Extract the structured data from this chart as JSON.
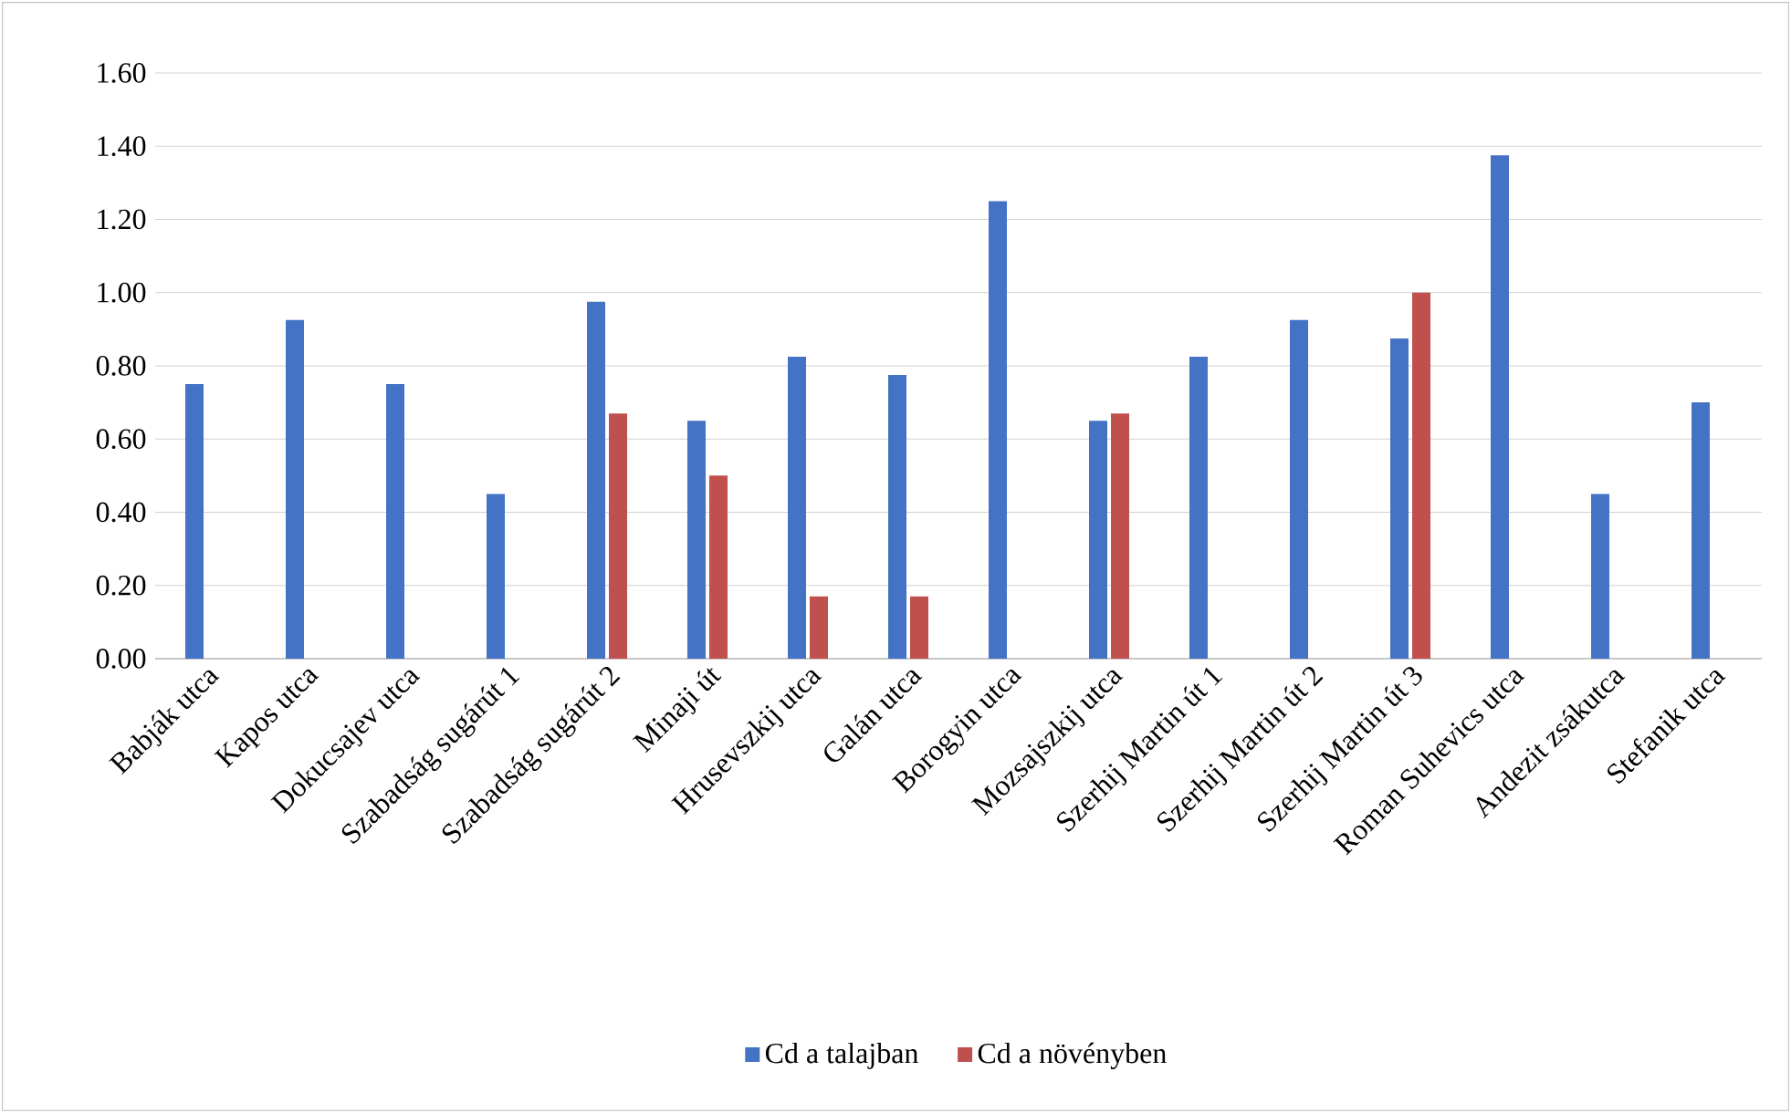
{
  "chart_data": {
    "type": "bar",
    "categories": [
      "Babják utca",
      "Kapos utca",
      "Dokucsajev utca",
      "Szabadság sugárút 1",
      "Szabadság sugárút 2",
      "Minaji út",
      "Hrusevszkij utca",
      "Galán utca",
      "Borogyin utca",
      "Mozsajszkij utca",
      "Szerhij Martin út 1",
      "Szerhij Martin út 2",
      "Szerhij Martin út 3",
      "Roman Suhevics utca",
      "Andezit zsákutca",
      "Stefanik utca"
    ],
    "series": [
      {
        "name": "Cd a talajban",
        "color": "#4472c4",
        "values": [
          0.75,
          0.925,
          0.75,
          0.45,
          0.975,
          0.65,
          0.825,
          0.775,
          1.25,
          0.65,
          0.825,
          0.925,
          0.875,
          1.375,
          0.45,
          0.7
        ]
      },
      {
        "name": "Cd a növényben",
        "color": "#c0504d",
        "values": [
          null,
          null,
          null,
          null,
          0.67,
          0.5,
          0.17,
          0.17,
          null,
          0.67,
          null,
          null,
          1.0,
          null,
          null,
          null
        ]
      }
    ],
    "ylim": [
      0,
      1.6
    ],
    "yticks": [
      {
        "value": 0,
        "label": "0.00"
      },
      {
        "value": 0.2,
        "label": "0.20"
      },
      {
        "value": 0.4,
        "label": "0.40"
      },
      {
        "value": 0.6,
        "label": "0.60"
      },
      {
        "value": 0.8,
        "label": "0.80"
      },
      {
        "value": 1.0,
        "label": "1.00"
      },
      {
        "value": 1.2,
        "label": "1.20"
      },
      {
        "value": 1.4,
        "label": "1.40"
      },
      {
        "value": 1.6,
        "label": "1.60"
      }
    ],
    "grid": "y",
    "legend": "bottom"
  }
}
